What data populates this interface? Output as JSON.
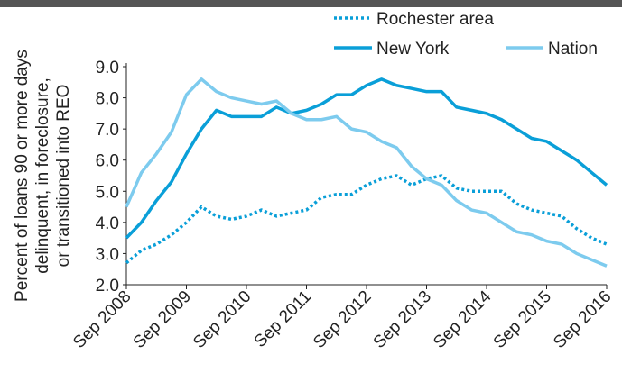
{
  "chart_data": {
    "type": "line",
    "y_label": [
      "Percent of loans 90 or more days",
      "delinquent, in foreclosure,",
      "or transitioned into REO"
    ],
    "x": [
      "Sep 2008",
      "Dec 2008",
      "Mar 2009",
      "Jun 2009",
      "Sep 2009",
      "Dec 2009",
      "Mar 2010",
      "Jun 2010",
      "Sep 2010",
      "Dec 2010",
      "Mar 2011",
      "Jun 2011",
      "Sep 2011",
      "Dec 2011",
      "Mar 2012",
      "Jun 2012",
      "Sep 2012",
      "Dec 2012",
      "Mar 2013",
      "Jun 2013",
      "Sep 2013",
      "Dec 2013",
      "Mar 2014",
      "Jun 2014",
      "Sep 2014",
      "Dec 2014",
      "Mar 2015",
      "Jun 2015",
      "Sep 2015",
      "Dec 2015",
      "Mar 2016",
      "Jun 2016",
      "Sep 2016"
    ],
    "series": [
      {
        "name": "Rochester area",
        "color": "#0a9fd8",
        "style": "dotted",
        "values": [
          2.7,
          3.1,
          3.3,
          3.6,
          4.0,
          4.5,
          4.2,
          4.1,
          4.2,
          4.4,
          4.2,
          4.3,
          4.4,
          4.8,
          4.9,
          4.9,
          5.2,
          5.4,
          5.5,
          5.2,
          5.4,
          5.5,
          5.1,
          5.0,
          5.0,
          5.0,
          4.6,
          4.4,
          4.3,
          4.2,
          3.8,
          3.5,
          3.3
        ]
      },
      {
        "name": "New York",
        "color": "#0a9fd8",
        "style": "solid",
        "values": [
          3.5,
          4.0,
          4.7,
          5.3,
          6.2,
          7.0,
          7.6,
          7.4,
          7.4,
          7.4,
          7.7,
          7.5,
          7.6,
          7.8,
          8.1,
          8.1,
          8.4,
          8.6,
          8.4,
          8.3,
          8.2,
          8.2,
          7.7,
          7.6,
          7.5,
          7.3,
          7.0,
          6.7,
          6.6,
          6.3,
          6.0,
          5.6,
          5.2
        ]
      },
      {
        "name": "Nation",
        "color": "#7dcbee",
        "style": "solid",
        "values": [
          4.5,
          5.6,
          6.2,
          6.9,
          8.1,
          8.6,
          8.2,
          8.0,
          7.9,
          7.8,
          7.9,
          7.5,
          7.3,
          7.3,
          7.4,
          7.0,
          6.9,
          6.6,
          6.4,
          5.8,
          5.4,
          5.2,
          4.7,
          4.4,
          4.3,
          4.0,
          3.7,
          3.6,
          3.4,
          3.3,
          3.0,
          2.8,
          2.6
        ]
      }
    ],
    "xlim": [
      "Sep 2008",
      "Sep 2016"
    ],
    "xticks": [
      "Sep 2008",
      "Sep 2009",
      "Sep 2010",
      "Sep 2011",
      "Sep 2012",
      "Sep 2013",
      "Sep 2014",
      "Sep 2015",
      "Sep 2016"
    ],
    "ylim": [
      2,
      9
    ],
    "yticks": [
      {
        "value": 2,
        "label": "2.0"
      },
      {
        "value": 3,
        "label": "3.0"
      },
      {
        "value": 4,
        "label": "4.0"
      },
      {
        "value": 5,
        "label": "5.0"
      },
      {
        "value": 6,
        "label": "6.0"
      },
      {
        "value": 7,
        "label": "7.0"
      },
      {
        "value": 8,
        "label": "8.0"
      },
      {
        "value": 9,
        "label": "9.0"
      }
    ],
    "grid": false
  }
}
